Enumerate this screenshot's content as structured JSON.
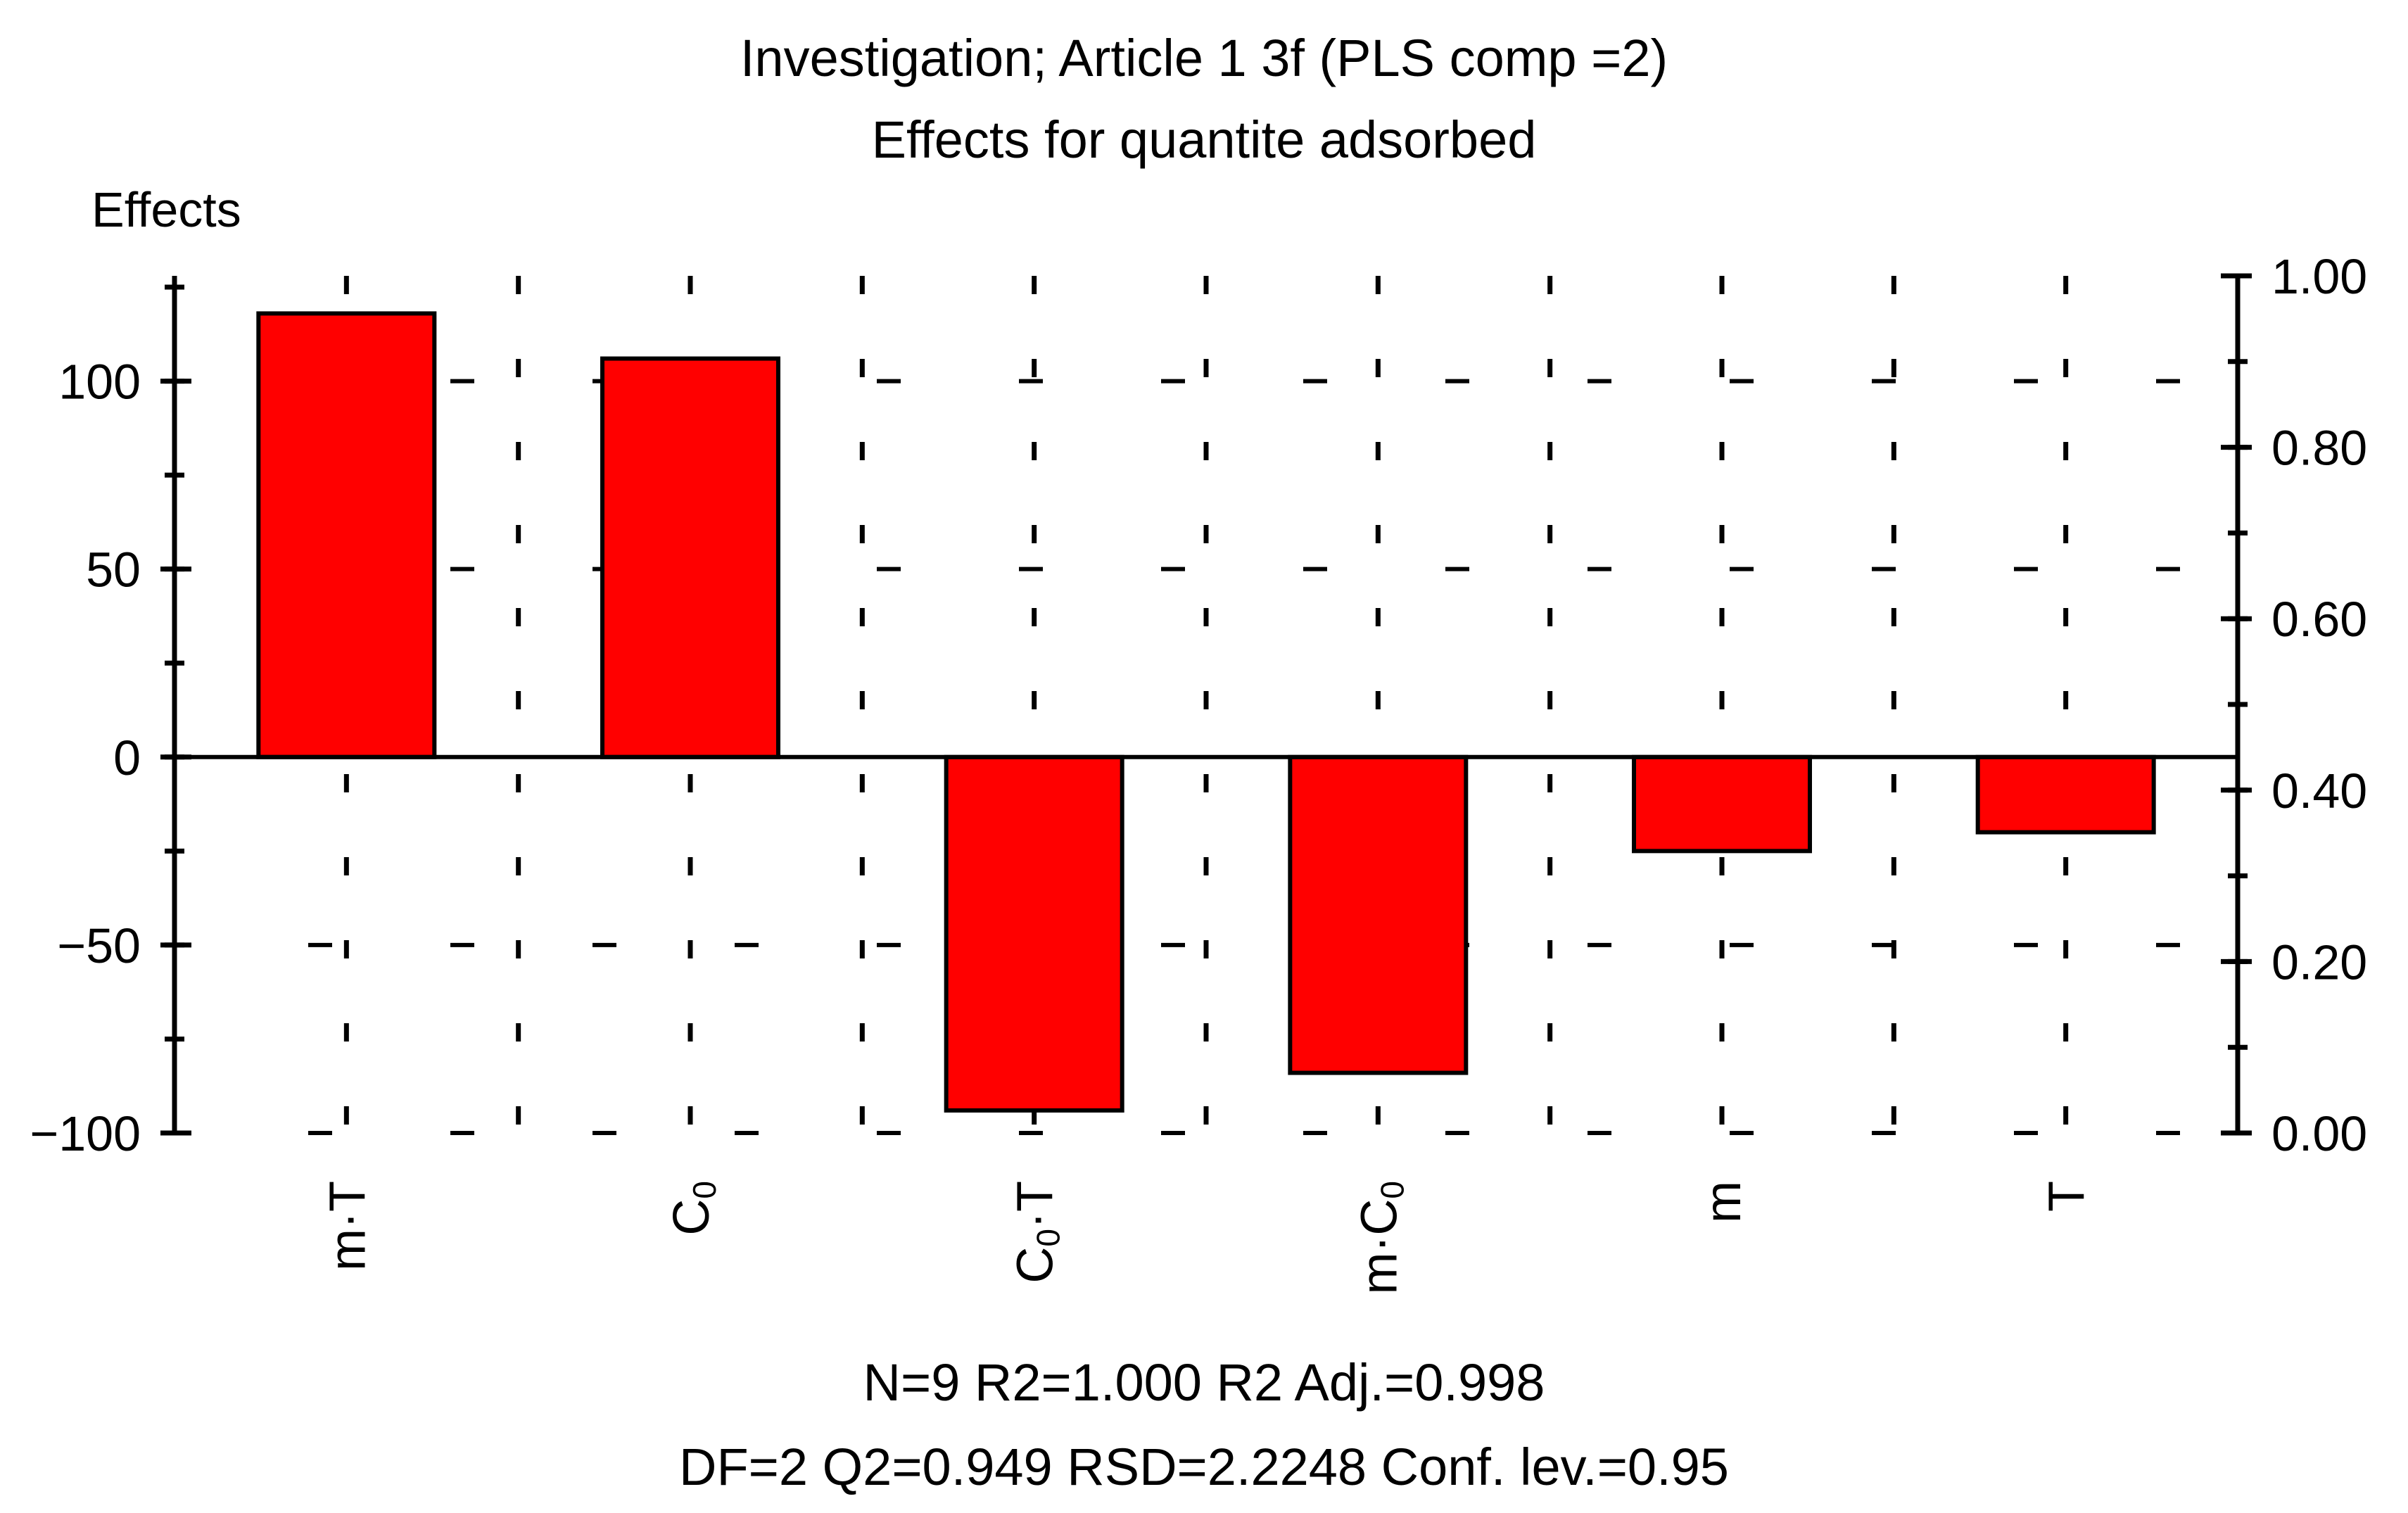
{
  "chart_data": {
    "type": "bar",
    "title": "Investigation; Article 1 3f (PLS comp =2)",
    "subtitle": "Effects for quantite adsorbed",
    "ylabel": "Effects",
    "categories": [
      {
        "label": "m·T",
        "base": "m·T",
        "sub": "",
        "tail": ""
      },
      {
        "label": "C0",
        "base": "C",
        "sub": "0",
        "tail": ""
      },
      {
        "label": "C0·T",
        "base": "C",
        "sub": "0",
        "tail": "·T"
      },
      {
        "label": "m·C0",
        "base": "m·C",
        "sub": "0",
        "tail": ""
      },
      {
        "label": "m",
        "base": "m",
        "sub": "",
        "tail": ""
      },
      {
        "label": "T",
        "base": "T",
        "sub": "",
        "tail": ""
      }
    ],
    "values": [
      118,
      106,
      -94,
      -84,
      -25,
      -20
    ],
    "ylim": [
      -100,
      128
    ],
    "yticks": [
      -100,
      -50,
      0,
      50,
      100
    ],
    "ytick_labels": [
      "−100",
      "−50",
      "0",
      "50",
      "100"
    ],
    "y2lim": [
      0.0,
      1.0
    ],
    "y2ticks": [
      0.0,
      0.2,
      0.4,
      0.6,
      0.8,
      1.0
    ],
    "y2tick_labels": [
      "0.00",
      "0.20",
      "0.40",
      "0.60",
      "0.80",
      "1.00"
    ],
    "grid": true,
    "bar_color": "#ff0000",
    "footer": [
      "N=9  R2=1.000  R2 Adj.=0.998",
      "DF=2   Q2=0.949   RSD=2.2248   Conf. lev.=0.95"
    ]
  }
}
